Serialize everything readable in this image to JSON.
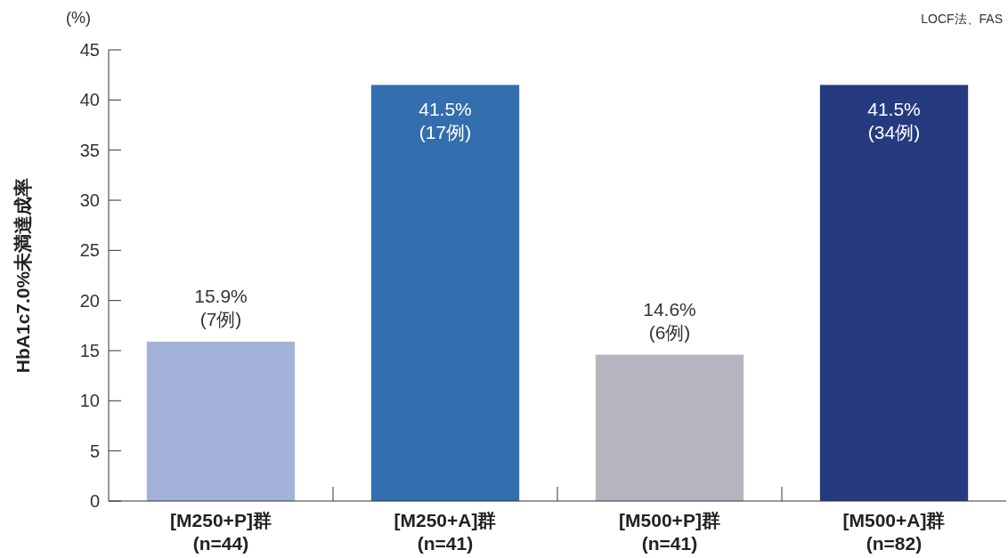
{
  "chart_data": {
    "type": "bar",
    "ylabel": "HbA1c7.0%未満達成率",
    "categories": [
      "[M250+P]群\n(n=44)",
      "[M250+A]群\n(n=41)",
      "[M500+P]群\n(n=41)",
      "[M500+A]群\n(n=82)"
    ],
    "values": [
      15.9,
      41.5,
      14.6,
      41.5
    ],
    "colors": [
      "#a2b2d9",
      "#336eae",
      "#b6b5bf",
      "#263a80"
    ],
    "value_labels": [
      "15.9%\n(7例)",
      "41.5%\n(17例)",
      "14.6%\n(6例)",
      "41.5%\n(34例)"
    ],
    "ylim": [
      0,
      45
    ],
    "yticks": [
      0,
      5,
      10,
      15,
      20,
      25,
      30,
      35,
      40,
      45
    ],
    "annotations": [
      "(%)",
      "LOCF法、FAS"
    ]
  }
}
